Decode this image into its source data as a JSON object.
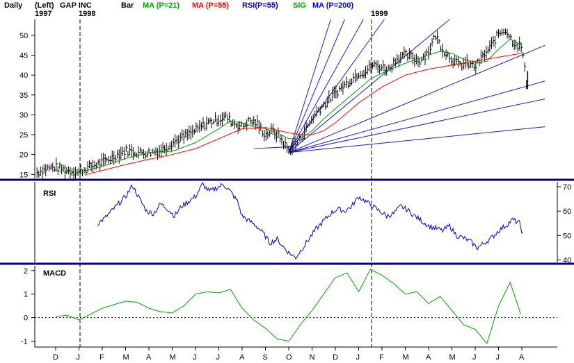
{
  "header": {
    "period": "Daily",
    "axis_side": "(Left)",
    "ticker": "GAP INC",
    "start_year": "1997",
    "year_1998": "1998",
    "year_1999": "1999",
    "bar_label": "Bar",
    "ma21_label": "MA (P=21)",
    "ma55_label": "MA (P=55)",
    "rsi_label": "RSI(P=55)",
    "sig_label": "SIG",
    "ma200_label": "MA (P=200)"
  },
  "colors": {
    "ma21": "#00a000",
    "ma55": "#ff0000",
    "rsi": "#0000c0",
    "sig": "#00a000",
    "ma200": "#0000c0",
    "fan": "#1a1acc",
    "divider": "#000080",
    "bars": "#000000"
  },
  "chart_data": [
    {
      "type": "line",
      "panel": "price",
      "title": "GAP INC",
      "period": "Daily",
      "ylim": [
        14,
        54
      ],
      "y_ticks": [
        15,
        20,
        25,
        30,
        35,
        40,
        45,
        50
      ],
      "x_tick_labels": [
        "D",
        "J",
        "F",
        "M",
        "A",
        "M",
        "J",
        "J",
        "A",
        "S",
        "O",
        "N",
        "D",
        "J",
        "F",
        "M",
        "A",
        "M",
        "J",
        "J",
        "A"
      ],
      "x_ticks_month_index": [
        0,
        1,
        2,
        3,
        4,
        5,
        6,
        7,
        8,
        9,
        10,
        11,
        12,
        13,
        14,
        15,
        16,
        17,
        18,
        19,
        20
      ],
      "year_markers": [
        {
          "label": "1998",
          "month_index": 1
        },
        {
          "label": "1999",
          "month_index": 13
        }
      ],
      "price_bars": {
        "t": [
          -0.8,
          -0.4,
          0.0,
          0.5,
          1.0,
          1.5,
          2.0,
          2.5,
          3.0,
          3.5,
          4.0,
          4.5,
          5.0,
          5.5,
          6.0,
          6.5,
          7.0,
          7.3,
          7.6,
          8.0,
          8.3,
          8.6,
          9.0,
          9.3,
          9.6,
          10.0,
          10.3,
          10.6,
          11.0,
          11.3,
          11.6,
          12.0,
          12.3,
          12.6,
          13.0,
          13.3,
          13.6,
          14.0,
          14.3,
          14.6,
          15.0,
          15.3,
          15.6,
          16.0,
          16.3,
          16.6,
          17.0,
          17.3,
          17.6,
          18.0,
          18.3,
          18.6,
          19.0,
          19.3,
          19.6,
          20.0,
          20.2
        ],
        "close": [
          15.5,
          16.5,
          16.8,
          16.0,
          15.5,
          17.0,
          18.0,
          19.5,
          21.0,
          20.5,
          20.5,
          21.0,
          23.0,
          24.5,
          26.0,
          28.0,
          29.0,
          29.5,
          28.0,
          27.0,
          28.5,
          28.0,
          25.0,
          26.0,
          24.5,
          21.0,
          22.5,
          25.0,
          29.0,
          31.5,
          33.0,
          35.5,
          37.0,
          38.5,
          40.5,
          41.0,
          42.5,
          42.0,
          41.5,
          44.0,
          45.0,
          44.5,
          43.5,
          46.0,
          50.0,
          46.5,
          44.0,
          42.5,
          43.0,
          42.0,
          44.5,
          46.5,
          50.5,
          51.5,
          48.5,
          47.0,
          38.0
        ]
      },
      "ma21": {
        "t": [
          0.0,
          1.0,
          2.0,
          3.0,
          4.0,
          5.0,
          6.0,
          7.0,
          7.5,
          8.0,
          8.5,
          9.0,
          9.5,
          10.0,
          10.5,
          11.0,
          11.5,
          12.0,
          12.5,
          13.0,
          13.5,
          14.0,
          15.0,
          16.0,
          16.5,
          17.0,
          17.5,
          18.0,
          18.5,
          19.0,
          19.5,
          20.0
        ],
        "values": [
          16.0,
          15.5,
          17.0,
          19.0,
          20.5,
          20.8,
          23.0,
          26.5,
          28.5,
          28.0,
          27.0,
          26.5,
          25.5,
          24.0,
          24.0,
          26.0,
          29.0,
          31.5,
          34.0,
          36.5,
          39.0,
          40.5,
          43.0,
          45.0,
          46.0,
          45.5,
          44.0,
          43.0,
          43.5,
          46.5,
          49.0,
          47.5
        ]
      },
      "ma55": {
        "t": [
          1.3,
          2.0,
          3.0,
          4.0,
          5.0,
          6.0,
          7.0,
          8.0,
          9.0,
          10.0,
          10.5,
          11.0,
          11.5,
          12.0,
          12.5,
          13.0,
          14.0,
          15.0,
          16.0,
          17.0,
          18.0,
          18.5,
          19.0,
          19.5,
          20.0
        ],
        "values": [
          15.0,
          16.0,
          17.5,
          18.8,
          20.0,
          21.5,
          24.0,
          26.5,
          26.8,
          25.5,
          25.0,
          25.0,
          26.0,
          28.0,
          30.5,
          33.0,
          37.0,
          40.0,
          41.5,
          42.5,
          43.5,
          44.0,
          44.5,
          45.0,
          45.5
        ]
      },
      "fan_lines": {
        "origin": {
          "t": 10.0,
          "price": 20.5
        },
        "ends": [
          {
            "t": 11.8,
            "price": 54
          },
          {
            "t": 12.4,
            "price": 54
          },
          {
            "t": 13.2,
            "price": 54
          },
          {
            "t": 14.1,
            "price": 54
          },
          {
            "t": 16.9,
            "price": 54
          },
          {
            "t": 21.0,
            "price": 47.5
          },
          {
            "t": 21.0,
            "price": 38.5
          },
          {
            "t": 21.0,
            "price": 34.0
          },
          {
            "t": 21.0,
            "price": 27.0
          }
        ]
      },
      "support_line": {
        "from": {
          "t": 8.5,
          "price": 21.5
        },
        "to": {
          "t": 10.2,
          "price": 22.0
        }
      }
    },
    {
      "type": "line",
      "panel": "rsi",
      "title": "RSI",
      "ylim": [
        39,
        72
      ],
      "y_ticks": [
        40,
        50,
        60,
        70
      ],
      "t": [
        1.8,
        2.1,
        2.4,
        2.7,
        3.0,
        3.3,
        3.6,
        3.9,
        4.2,
        4.5,
        4.8,
        5.1,
        5.4,
        5.7,
        6.0,
        6.3,
        6.6,
        6.9,
        7.2,
        7.5,
        7.8,
        8.0,
        8.3,
        8.6,
        8.9,
        9.2,
        9.5,
        9.8,
        10.0,
        10.3,
        10.6,
        10.9,
        11.2,
        11.5,
        11.8,
        12.1,
        12.4,
        12.7,
        13.0,
        13.3,
        13.6,
        13.9,
        14.2,
        14.5,
        14.8,
        15.1,
        15.4,
        15.7,
        16.0,
        16.3,
        16.6,
        16.9,
        17.2,
        17.5,
        17.8,
        18.1,
        18.4,
        18.7,
        19.0,
        19.3,
        19.6,
        19.9,
        20.1
      ],
      "values": [
        55.0,
        57.0,
        60.0,
        63.0,
        66.0,
        70.5,
        65.0,
        60.0,
        59.0,
        63.0,
        61.0,
        58.0,
        62.0,
        64.0,
        66.0,
        71.0,
        68.0,
        69.5,
        71.0,
        68.0,
        64.0,
        58.0,
        56.0,
        54.0,
        51.0,
        47.0,
        48.5,
        45.0,
        43.0,
        41.0,
        45.0,
        49.0,
        53.0,
        56.0,
        59.0,
        61.0,
        60.0,
        62.0,
        66.0,
        64.0,
        62.0,
        60.0,
        58.0,
        59.0,
        62.0,
        60.5,
        58.0,
        56.0,
        54.0,
        53.0,
        52.0,
        54.0,
        50.0,
        49.0,
        47.5,
        45.0,
        47.0,
        49.0,
        52.0,
        54.0,
        56.5,
        55.0,
        49.0
      ]
    },
    {
      "type": "line",
      "panel": "macd",
      "title": "MACD",
      "ylim": [
        -1.25,
        2.2
      ],
      "y_ticks": [
        -1,
        0,
        1,
        2
      ],
      "zero_line": true,
      "t": [
        0.0,
        0.5,
        1.0,
        1.5,
        2.0,
        2.5,
        3.0,
        3.5,
        4.0,
        4.5,
        5.0,
        5.5,
        6.0,
        6.5,
        7.0,
        7.5,
        8.0,
        8.5,
        9.0,
        9.5,
        10.0,
        10.5,
        11.0,
        11.5,
        12.0,
        12.5,
        13.0,
        13.5,
        14.0,
        14.5,
        15.0,
        15.5,
        16.0,
        16.5,
        17.0,
        17.5,
        18.0,
        18.5,
        19.0,
        19.5,
        20.0
      ],
      "values": [
        0.05,
        0.1,
        -0.1,
        0.15,
        0.4,
        0.55,
        0.7,
        0.65,
        0.4,
        0.25,
        0.2,
        0.5,
        1.0,
        1.1,
        1.05,
        1.2,
        0.4,
        -0.1,
        -0.45,
        -0.9,
        -1.0,
        -0.3,
        0.3,
        1.0,
        1.7,
        1.9,
        1.1,
        2.05,
        1.8,
        1.45,
        1.0,
        1.1,
        0.6,
        0.9,
        0.3,
        -0.3,
        -0.5,
        -1.1,
        0.5,
        1.5,
        0.0
      ]
    }
  ]
}
